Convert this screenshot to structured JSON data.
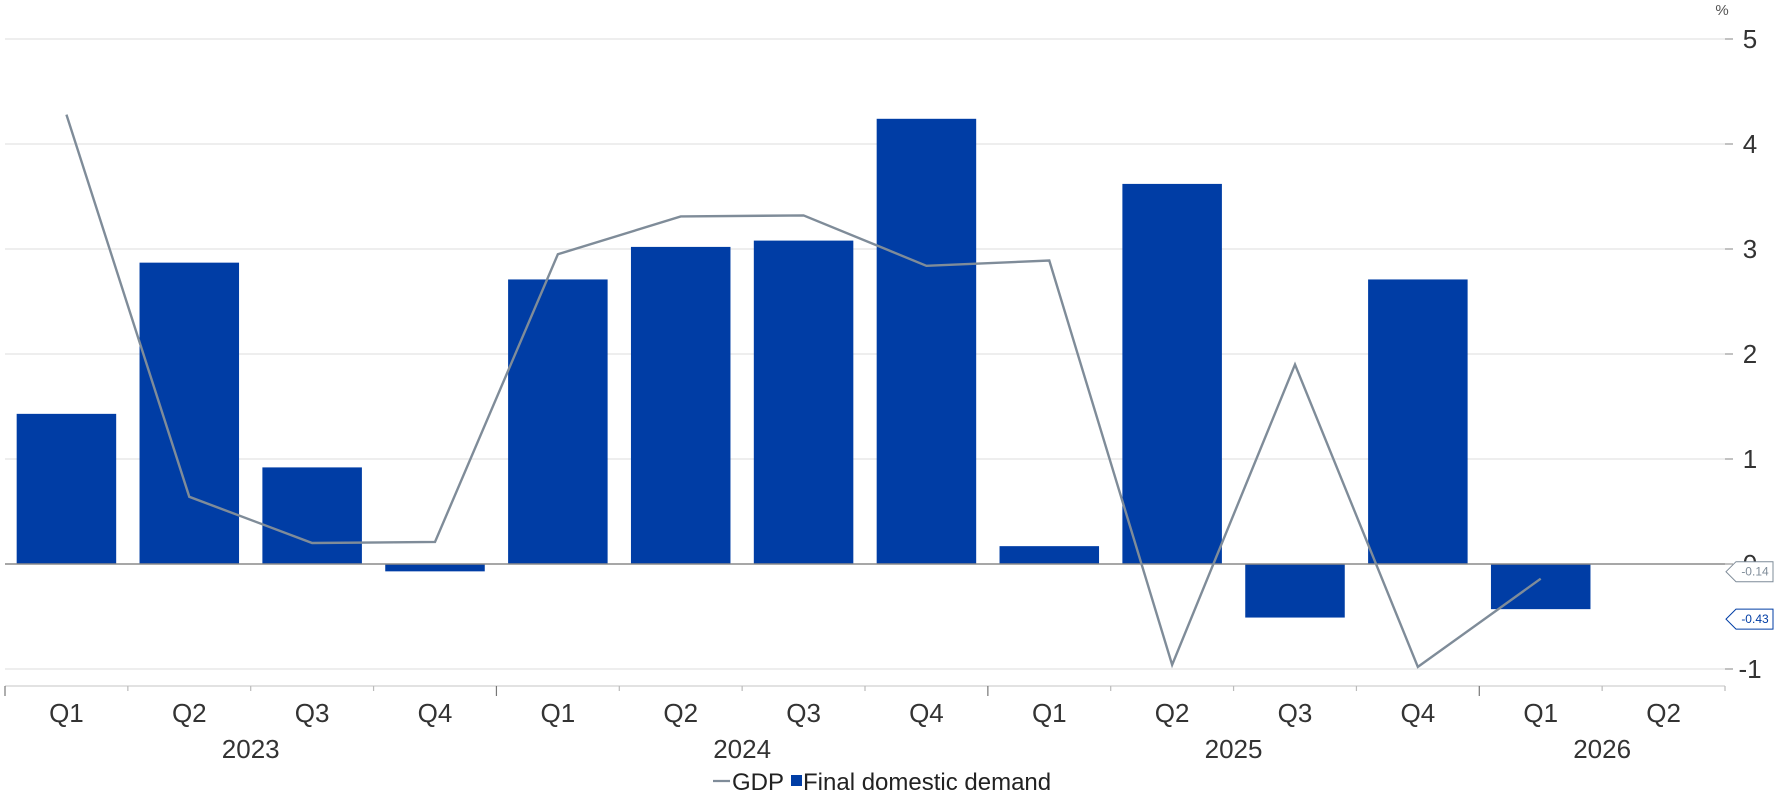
{
  "chart_data": {
    "type": "bar",
    "unit": "%",
    "categories": [
      "Q1",
      "Q2",
      "Q3",
      "Q4",
      "Q1",
      "Q2",
      "Q3",
      "Q4",
      "Q1",
      "Q2",
      "Q3",
      "Q4",
      "Q1",
      "Q2"
    ],
    "years": [
      {
        "label": "2023",
        "start": 0,
        "end": 3
      },
      {
        "label": "2024",
        "start": 4,
        "end": 7
      },
      {
        "label": "2025",
        "start": 8,
        "end": 11
      },
      {
        "label": "2026",
        "start": 12,
        "end": 13
      }
    ],
    "series": [
      {
        "name": "Final domestic demand",
        "kind": "bar",
        "color": "#003DA5",
        "values": [
          1.43,
          2.87,
          0.92,
          -0.07,
          2.71,
          3.02,
          3.08,
          4.24,
          0.17,
          3.62,
          -0.51,
          2.71,
          -0.43,
          null
        ]
      },
      {
        "name": "GDP",
        "kind": "line",
        "color": "#7F8C99",
        "values": [
          4.28,
          0.64,
          0.2,
          0.21,
          2.95,
          3.31,
          3.32,
          2.84,
          2.89,
          -0.96,
          1.9,
          -0.98,
          -0.14,
          null
        ]
      }
    ],
    "ylim": [
      -1.2,
      5.2
    ],
    "yticks": [
      "-1",
      "0",
      "1",
      "2",
      "3",
      "4",
      "5"
    ],
    "grid": true,
    "legend_position": "bottom",
    "end_labels": [
      {
        "series": "GDP",
        "text": "-0.14",
        "value": -0.14,
        "color": "#7F8C99"
      },
      {
        "series": "Final domestic demand",
        "text": "-0.43",
        "value": -0.43,
        "color": "#003DA5"
      }
    ]
  }
}
